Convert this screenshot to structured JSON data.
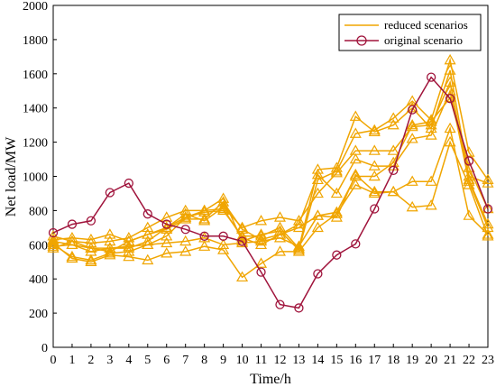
{
  "chart_data": {
    "type": "line",
    "xlabel": "Time/h",
    "ylabel": "Net load/MW",
    "xlim": [
      0,
      23
    ],
    "ylim": [
      0,
      2000
    ],
    "x": [
      0,
      1,
      2,
      3,
      4,
      5,
      6,
      7,
      8,
      9,
      10,
      11,
      12,
      13,
      14,
      15,
      16,
      17,
      18,
      19,
      20,
      21,
      22,
      23
    ],
    "xticks": [
      "0",
      "1",
      "2",
      "3",
      "4",
      "5",
      "6",
      "7",
      "8",
      "9",
      "10",
      "11",
      "12",
      "13",
      "14",
      "15",
      "16",
      "17",
      "18",
      "19",
      "20",
      "21",
      "22",
      "23"
    ],
    "yticks": [
      "0",
      "200",
      "400",
      "600",
      "800",
      "1000",
      "1200",
      "1400",
      "1600",
      "1800",
      "2000"
    ],
    "grid": false,
    "legend_position": "top-right",
    "colors": {
      "reduced": "#f0a500",
      "original": "#a0143c"
    },
    "legend": [
      {
        "label": "reduced scenarios",
        "marker": "triangle"
      },
      {
        "label": "original scenario",
        "marker": "circle"
      }
    ],
    "series": [
      {
        "group": "original",
        "values": [
          670,
          720,
          740,
          905,
          960,
          780,
          720,
          690,
          650,
          650,
          620,
          440,
          250,
          230,
          430,
          540,
          605,
          810,
          1035,
          1390,
          1580,
          1455,
          1090,
          810
        ]
      },
      {
        "group": "reduced",
        "values": [
          600,
          530,
          510,
          550,
          560,
          600,
          650,
          760,
          800,
          870,
          620,
          660,
          680,
          570,
          980,
          1030,
          1250,
          1270,
          1340,
          1440,
          1330,
          1680,
          1140,
          980
        ]
      },
      {
        "group": "reduced",
        "values": [
          650,
          620,
          580,
          560,
          620,
          660,
          700,
          760,
          790,
          800,
          650,
          650,
          700,
          580,
          1040,
          1050,
          1350,
          1260,
          1300,
          1400,
          1280,
          1620,
          1000,
          960
        ]
      },
      {
        "group": "reduced",
        "values": [
          620,
          600,
          560,
          580,
          580,
          620,
          700,
          780,
          740,
          820,
          700,
          740,
          760,
          740,
          900,
          1020,
          1150,
          1150,
          1150,
          1290,
          1300,
          1550,
          980,
          720
        ]
      },
      {
        "group": "reduced",
        "values": [
          580,
          620,
          610,
          620,
          640,
          700,
          760,
          800,
          800,
          810,
          640,
          600,
          660,
          720,
          1010,
          900,
          1100,
          1060,
          1060,
          1220,
          1240,
          1500,
          970,
          700
        ]
      },
      {
        "group": "reduced",
        "values": [
          590,
          600,
          580,
          580,
          590,
          600,
          610,
          620,
          640,
          600,
          610,
          620,
          640,
          590,
          770,
          760,
          1010,
          910,
          910,
          970,
          970,
          1280,
          770,
          660
        ]
      },
      {
        "group": "reduced",
        "values": [
          610,
          520,
          500,
          540,
          530,
          510,
          550,
          560,
          590,
          570,
          410,
          490,
          560,
          560,
          700,
          780,
          950,
          900,
          910,
          820,
          830,
          1200,
          950,
          650
        ]
      },
      {
        "group": "reduced",
        "values": [
          630,
          640,
          630,
          660,
          620,
          660,
          690,
          750,
          750,
          850,
          690,
          630,
          660,
          700,
          770,
          790,
          1000,
          1000,
          1080,
          1300,
          1320,
          1460,
          1050,
          810
        ]
      }
    ]
  }
}
